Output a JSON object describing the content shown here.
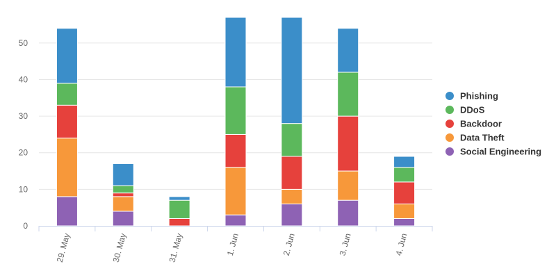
{
  "chart_data": {
    "type": "bar",
    "stacked": true,
    "categories": [
      "29. May",
      "30. May",
      "31. May",
      "1. Jun",
      "2. Jun",
      "3. Jun",
      "4. Jun"
    ],
    "series": [
      {
        "name": "Social Engineering",
        "color": "#8e62b4",
        "values": [
          8,
          4,
          0,
          3,
          6,
          7,
          2
        ]
      },
      {
        "name": "Data Theft",
        "color": "#f7983a",
        "values": [
          16,
          4,
          0,
          13,
          4,
          8,
          4
        ]
      },
      {
        "name": "Backdoor",
        "color": "#e6413c",
        "values": [
          9,
          1,
          2,
          9,
          9,
          15,
          6
        ]
      },
      {
        "name": "DDoS",
        "color": "#5cb85c",
        "values": [
          6,
          2,
          5,
          13,
          9,
          12,
          4
        ]
      },
      {
        "name": "Phishing",
        "color": "#3b8ec9",
        "values": [
          15,
          6,
          1,
          19,
          29,
          12,
          3
        ]
      }
    ],
    "legend_order": [
      "Phishing",
      "DDoS",
      "Backdoor",
      "Data Theft",
      "Social Engineering"
    ],
    "y_ticks": [
      0,
      10,
      20,
      30,
      40,
      50
    ],
    "ylim": [
      0,
      57
    ],
    "grid": true,
    "legend_position": "right",
    "title": "",
    "xlabel": "",
    "ylabel": ""
  }
}
